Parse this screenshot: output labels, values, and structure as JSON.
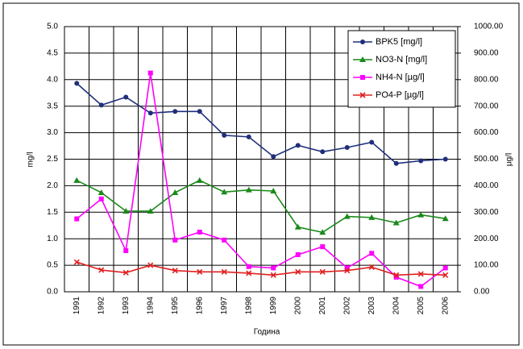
{
  "chart_data": {
    "type": "line",
    "xlabel": "Година",
    "ylabel": "mg/l",
    "y2label": "µg/l",
    "categories": [
      "1991",
      "1992",
      "1993",
      "1994",
      "1995",
      "1996",
      "1997",
      "1998",
      "1999",
      "2000",
      "2001",
      "2002",
      "2003",
      "2004",
      "2005",
      "2006"
    ],
    "ylim": [
      0,
      5
    ],
    "yticks": [
      {
        "value": 0,
        "label": "0.0"
      },
      {
        "value": 0.5,
        "label": "0.5"
      },
      {
        "value": 1,
        "label": "1.0"
      },
      {
        "value": 1.5,
        "label": "1.5"
      },
      {
        "value": 2,
        "label": "2.0"
      },
      {
        "value": 2.5,
        "label": "2.5"
      },
      {
        "value": 3,
        "label": "3.0"
      },
      {
        "value": 3.5,
        "label": "3.5"
      },
      {
        "value": 4,
        "label": "4.0"
      },
      {
        "value": 4.5,
        "label": "4.5"
      },
      {
        "value": 5,
        "label": "5.0"
      }
    ],
    "y2lim": [
      0,
      1000
    ],
    "y2ticks": [
      {
        "value": 0,
        "label": "0.00"
      },
      {
        "value": 100,
        "label": "100.00"
      },
      {
        "value": 200,
        "label": "200.00"
      },
      {
        "value": 300,
        "label": "300.00"
      },
      {
        "value": 400,
        "label": "400.00"
      },
      {
        "value": 500,
        "label": "500.00"
      },
      {
        "value": 600,
        "label": "600.00"
      },
      {
        "value": 700,
        "label": "700.00"
      },
      {
        "value": 800,
        "label": "800.00"
      },
      {
        "value": 900,
        "label": "900.00"
      },
      {
        "value": 1000,
        "label": "1000.00"
      }
    ],
    "grid": true,
    "legend": "upper right",
    "series": [
      {
        "name": "BPK5 [mg/l]",
        "color": "#1f2f7a",
        "marker": "circle",
        "values": [
          3.93,
          3.52,
          3.67,
          3.37,
          3.4,
          3.4,
          2.95,
          2.92,
          2.55,
          2.76,
          2.64,
          2.72,
          2.82,
          2.42,
          2.47,
          2.5
        ]
      },
      {
        "name": "NO3-N [mg/l]",
        "color": "#1a8a1a",
        "marker": "triangle",
        "values": [
          2.1,
          1.87,
          1.52,
          1.52,
          1.87,
          2.1,
          1.88,
          1.92,
          1.9,
          1.22,
          1.12,
          1.42,
          1.4,
          1.3,
          1.45,
          1.38
        ]
      },
      {
        "name": "NH4-N [µg/l]",
        "color": "#ff00ff",
        "marker": "square",
        "axis": "y2",
        "values": [
          275,
          350,
          155,
          825,
          195,
          225,
          195,
          95,
          90,
          140,
          170,
          90,
          145,
          55,
          20,
          90
        ]
      },
      {
        "name": "PO4-P [µg/l]",
        "color": "#e02020",
        "marker": "x",
        "axis": "y2",
        "values": [
          112,
          82,
          72,
          100,
          80,
          75,
          75,
          70,
          63,
          75,
          75,
          80,
          93,
          63,
          67,
          63
        ]
      }
    ]
  }
}
